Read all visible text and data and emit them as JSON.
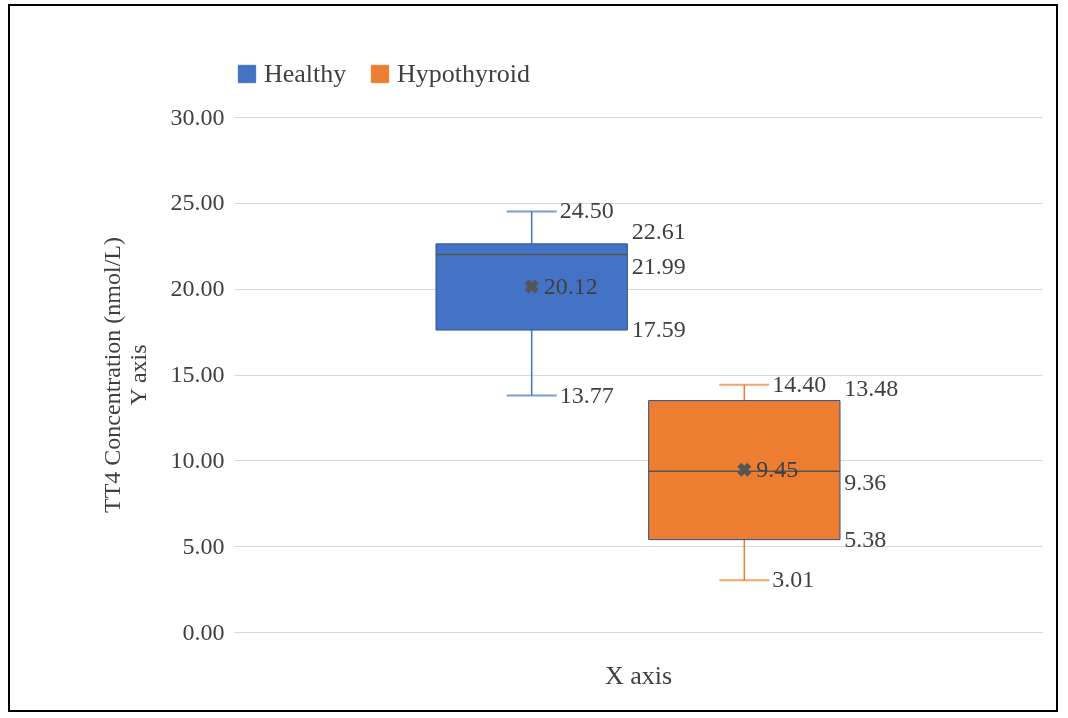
{
  "chart_data": {
    "type": "box",
    "categories": [
      null
    ],
    "xlabel": "X axis",
    "ylabel": "TT4 Concentration (nmol/L)\nY axis",
    "series": [
      {
        "name": "Healthy",
        "color": "#4472c4",
        "boxes": [
          {
            "low": 13.77,
            "q1": 17.59,
            "median": 21.99,
            "q3": 22.61,
            "high": 24.5,
            "mean": 20.12
          }
        ]
      },
      {
        "name": "Hypothyroid",
        "color": "#ed7d31",
        "boxes": [
          {
            "low": 3.01,
            "q1": 5.38,
            "median": 9.36,
            "q3": 13.48,
            "high": 14.4,
            "mean": 9.45
          }
        ]
      }
    ],
    "ylim": [
      0,
      30
    ],
    "yticks": [
      {
        "value": 0,
        "label": "0.00"
      },
      {
        "value": 5,
        "label": "5.00"
      },
      {
        "value": 10,
        "label": "10.00"
      },
      {
        "value": 15,
        "label": "15.00"
      },
      {
        "value": 20,
        "label": "20.00"
      },
      {
        "value": 25,
        "label": "25.00"
      },
      {
        "value": 30,
        "label": "30.00"
      }
    ],
    "annotations": [
      "24.50",
      "22.61",
      "21.99",
      "20.12",
      "17.59",
      "13.77",
      "14.40",
      "13.48",
      "9.36",
      "9.45",
      "5.38",
      "3.01"
    ],
    "grid": "y",
    "legend": "top",
    "marker": "cross"
  }
}
